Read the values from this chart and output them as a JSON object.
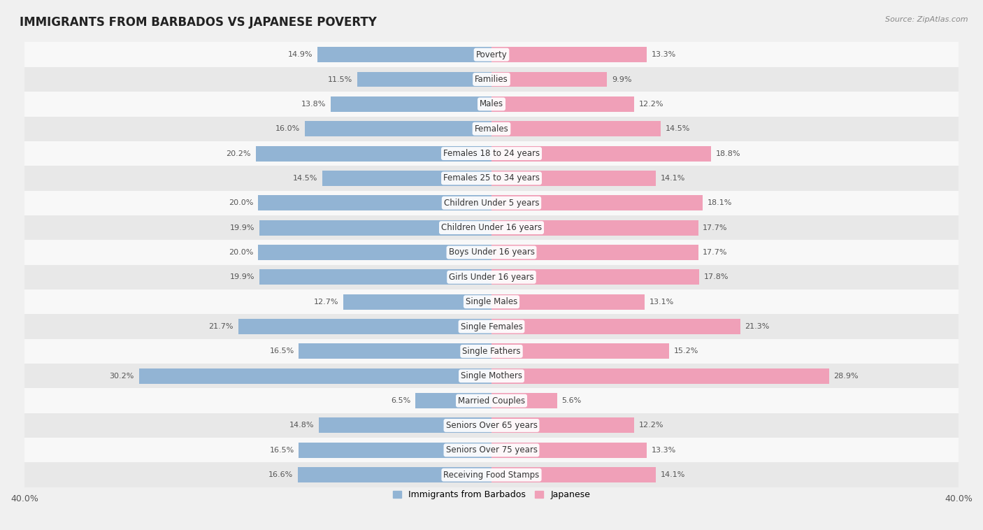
{
  "title": "IMMIGRANTS FROM BARBADOS VS JAPANESE POVERTY",
  "source": "Source: ZipAtlas.com",
  "categories": [
    "Poverty",
    "Families",
    "Males",
    "Females",
    "Females 18 to 24 years",
    "Females 25 to 34 years",
    "Children Under 5 years",
    "Children Under 16 years",
    "Boys Under 16 years",
    "Girls Under 16 years",
    "Single Males",
    "Single Females",
    "Single Fathers",
    "Single Mothers",
    "Married Couples",
    "Seniors Over 65 years",
    "Seniors Over 75 years",
    "Receiving Food Stamps"
  ],
  "barbados_values": [
    14.9,
    11.5,
    13.8,
    16.0,
    20.2,
    14.5,
    20.0,
    19.9,
    20.0,
    19.9,
    12.7,
    21.7,
    16.5,
    30.2,
    6.5,
    14.8,
    16.5,
    16.6
  ],
  "japanese_values": [
    13.3,
    9.9,
    12.2,
    14.5,
    18.8,
    14.1,
    18.1,
    17.7,
    17.7,
    17.8,
    13.1,
    21.3,
    15.2,
    28.9,
    5.6,
    12.2,
    13.3,
    14.1
  ],
  "barbados_color": "#92b4d4",
  "japanese_color": "#f0a0b8",
  "background_color": "#f0f0f0",
  "row_bg_light": "#f8f8f8",
  "row_bg_dark": "#e8e8e8",
  "xlim": 40.0,
  "bar_height": 0.62,
  "label_fontsize": 8.0,
  "cat_fontsize": 8.5,
  "title_fontsize": 12,
  "legend_fontsize": 9,
  "legend_label_barbados": "Immigrants from Barbados",
  "legend_label_japanese": "Japanese"
}
